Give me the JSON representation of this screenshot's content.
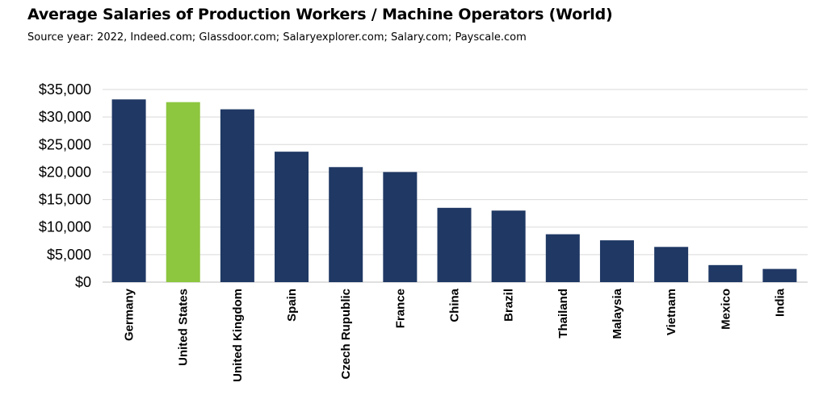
{
  "title": "Average Salaries of Production Workers / Machine Operators (World)",
  "subtitle": "Source year: 2022, Indeed.com; Glassdoor.com; Salaryexplorer.com; Salary.com; Payscale.com",
  "colors": {
    "bar": "#1f3864",
    "highlight": "#8dc63f",
    "grid": "#d9d9d9",
    "axis": "#bfbfbf"
  },
  "chart_data": {
    "type": "bar",
    "title": "Average Salaries of Production Workers / Machine Operators (World)",
    "subtitle": "Source year: 2022, Indeed.com; Glassdoor.com; Salaryexplorer.com; Salary.com; Payscale.com",
    "xlabel": "",
    "ylabel": "",
    "categories": [
      "Germany",
      "United States",
      "United Kingdom",
      "Spain",
      "Czech Rupublic",
      "France",
      "China",
      "Brazil",
      "Thailand",
      "Malaysia",
      "Vietnam",
      "Mexico",
      "India"
    ],
    "values": [
      33200,
      32700,
      31400,
      23700,
      20900,
      20000,
      13500,
      13000,
      8700,
      7600,
      6400,
      3100,
      2400
    ],
    "highlight": "United States",
    "ylim": [
      0,
      35000
    ],
    "yticks": [
      0,
      5000,
      10000,
      15000,
      20000,
      25000,
      30000,
      35000
    ],
    "ytick_labels": [
      "$0",
      "$5,000",
      "$10,000",
      "$15,000",
      "$20,000",
      "$25,000",
      "$30,000",
      "$35,000"
    ],
    "grid": true,
    "legend": "none"
  }
}
